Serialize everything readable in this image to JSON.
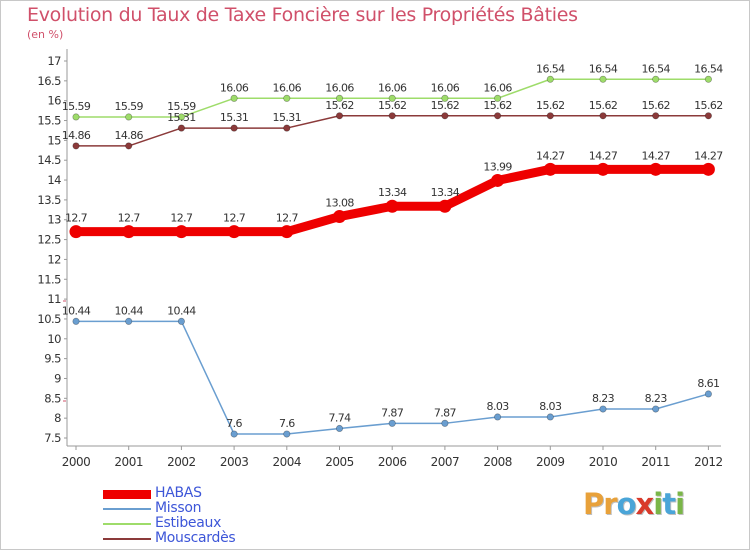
{
  "title": "Evolution du Taux de Taxe Foncière sur les Propriétés Bâties",
  "subtitle": "(en %)",
  "brand": {
    "text": "Proxiti",
    "letters": [
      {
        "ch": "P",
        "color": "#e8a13a"
      },
      {
        "ch": "r",
        "color": "#e8a13a"
      },
      {
        "ch": "o",
        "color": "#4aa5d8"
      },
      {
        "ch": "x",
        "color": "#d93a2b"
      },
      {
        "ch": "i",
        "color": "#7ab648"
      },
      {
        "ch": "t",
        "color": "#4aa5d8"
      },
      {
        "ch": "i",
        "color": "#7ab648"
      }
    ]
  },
  "chart_data": {
    "type": "line",
    "title": "Evolution du Taux de Taxe Foncière sur les Propriétés Bâties",
    "ylabel": "(en %)",
    "xlabel": "",
    "x": [
      "2000",
      "2001",
      "2002",
      "2003",
      "2004",
      "2005",
      "2006",
      "2007",
      "2008",
      "2009",
      "2010",
      "2011",
      "2012"
    ],
    "ylim": [
      7.5,
      17
    ],
    "yticks": [
      7.5,
      8,
      8.5,
      9,
      9.5,
      10,
      10.5,
      11,
      11.5,
      12,
      12.5,
      13,
      13.5,
      14,
      14.5,
      15,
      15.5,
      16,
      16.5,
      17
    ],
    "ytick_labels": [
      "7.5",
      "8",
      "8.5",
      "9",
      "9.5",
      "10",
      "10.5",
      "11",
      "11.5",
      "12",
      "12.5",
      "13",
      "13.5",
      "14",
      "14.5",
      "15",
      "15.5",
      "16",
      "16.5",
      "17"
    ],
    "grid": false,
    "legend_position": "bottom-left",
    "series": [
      {
        "name": "HABAS",
        "color": "#ee0000",
        "emphasis": true,
        "values": [
          12.7,
          12.7,
          12.7,
          12.7,
          12.7,
          13.08,
          13.34,
          13.34,
          13.99,
          14.27,
          14.27,
          14.27,
          14.27
        ],
        "labels": [
          "12.7",
          "12.7",
          "12.7",
          "12.7",
          "12.7",
          "13.08",
          "13.34",
          "13.34",
          "13.99",
          "14.27",
          "14.27",
          "14.27",
          "14.27"
        ]
      },
      {
        "name": "Misson",
        "color": "#6a9ed0",
        "values": [
          10.44,
          10.44,
          10.44,
          7.6,
          7.6,
          7.74,
          7.87,
          7.87,
          8.03,
          8.03,
          8.23,
          8.23,
          8.61
        ],
        "labels": [
          "10.44",
          "10.44",
          "10.44",
          "7.6",
          "7.6",
          "7.74",
          "7.87",
          "7.87",
          "8.03",
          "8.03",
          "8.23",
          "8.23",
          "8.61"
        ]
      },
      {
        "name": "Estibeaux",
        "color": "#9edc6a",
        "values": [
          15.59,
          15.59,
          15.59,
          16.06,
          16.06,
          16.06,
          16.06,
          16.06,
          16.06,
          16.54,
          16.54,
          16.54,
          16.54
        ],
        "labels": [
          "15.59",
          "15.59",
          "15.59",
          "16.06",
          "16.06",
          "16.06",
          "16.06",
          "16.06",
          "16.06",
          "16.54",
          "16.54",
          "16.54",
          "16.54"
        ]
      },
      {
        "name": "Mouscardès",
        "color": "#8b3a3a",
        "values": [
          14.86,
          14.86,
          15.31,
          15.31,
          15.31,
          15.62,
          15.62,
          15.62,
          15.62,
          15.62,
          15.62,
          15.62,
          15.62
        ],
        "labels": [
          "14.86",
          "14.86",
          "15.31",
          "15.31",
          "15.31",
          "15.62",
          "15.62",
          "15.62",
          "15.62",
          "15.62",
          "15.62",
          "15.62",
          "15.62"
        ]
      }
    ]
  }
}
